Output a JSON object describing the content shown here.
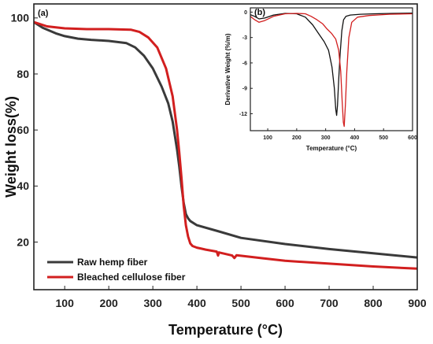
{
  "chart_data": [
    {
      "panel_label": "(a)",
      "type": "line",
      "xlabel": "Temperature (°C)",
      "ylabel": "Weight loss(%)",
      "xlim": [
        30,
        900
      ],
      "ylim": [
        3,
        105
      ],
      "x_ticks": [
        100,
        200,
        300,
        400,
        500,
        600,
        700,
        800,
        900
      ],
      "y_ticks": [
        20,
        40,
        60,
        80,
        100
      ],
      "legend_position": "bottom-left",
      "series": [
        {
          "name": "Raw hemp fiber",
          "color": "#3a3a3a",
          "x": [
            30,
            50,
            80,
            100,
            130,
            160,
            200,
            240,
            260,
            280,
            300,
            320,
            335,
            345,
            355,
            360,
            365,
            370,
            375,
            380,
            385,
            400,
            450,
            500,
            600,
            700,
            800,
            900
          ],
          "y": [
            98.5,
            96.5,
            94.5,
            93.5,
            92.6,
            92.2,
            91.8,
            91,
            89.5,
            86.5,
            82,
            75.5,
            69.5,
            63,
            53,
            47,
            40,
            34,
            30,
            28.5,
            27.5,
            26,
            23.8,
            21.5,
            19.3,
            17.5,
            16,
            14.5
          ]
        },
        {
          "name": "Bleached cellulose fiber",
          "color": "#d21f1f",
          "x": [
            30,
            60,
            100,
            150,
            200,
            250,
            270,
            290,
            310,
            330,
            345,
            355,
            360,
            365,
            370,
            375,
            380,
            385,
            390,
            400,
            420,
            445,
            448,
            450,
            480,
            485,
            490,
            550,
            600,
            700,
            800,
            900
          ],
          "y": [
            98.5,
            97,
            96.3,
            96,
            96,
            95.8,
            95,
            93,
            89.5,
            82,
            72,
            60,
            52,
            43,
            33,
            26,
            22,
            19.5,
            18.6,
            18,
            17.3,
            16.6,
            15.2,
            16.3,
            15.2,
            14.3,
            15.3,
            14.2,
            13.3,
            12.3,
            11.3,
            10.5
          ]
        }
      ]
    },
    {
      "panel_label": "(b)",
      "type": "line",
      "xlabel": "Temperature (°C)",
      "ylabel": "Derivative Weight (%/m)",
      "xlim": [
        40,
        600
      ],
      "ylim": [
        -14,
        0.5
      ],
      "x_ticks": [
        100,
        200,
        300,
        400,
        500,
        600
      ],
      "y_ticks": [
        0,
        -3,
        -6,
        -9,
        -12
      ],
      "series": [
        {
          "color": "#111111",
          "x": [
            40,
            55,
            70,
            90,
            120,
            160,
            200,
            230,
            255,
            275,
            295,
            310,
            322,
            330,
            335,
            338,
            341,
            345,
            350,
            356,
            362,
            370,
            385,
            420,
            470,
            530,
            600
          ],
          "y": [
            -0.3,
            -0.5,
            -0.8,
            -0.7,
            -0.35,
            -0.15,
            -0.2,
            -0.6,
            -1.5,
            -2.5,
            -3.5,
            -4.5,
            -6.5,
            -9,
            -11.5,
            -12.2,
            -11,
            -8,
            -5,
            -2.2,
            -0.9,
            -0.5,
            -0.35,
            -0.25,
            -0.2,
            -0.15,
            -0.12
          ]
        },
        {
          "color": "#d21f1f",
          "x": [
            40,
            55,
            70,
            90,
            120,
            160,
            200,
            230,
            250,
            270,
            290,
            305,
            320,
            335,
            345,
            352,
            357,
            361,
            364,
            368,
            373,
            380,
            390,
            410,
            450,
            520,
            600
          ],
          "y": [
            -0.5,
            -0.9,
            -1.2,
            -1,
            -0.5,
            -0.2,
            -0.15,
            -0.2,
            -0.5,
            -0.9,
            -1.4,
            -2,
            -2.5,
            -3.2,
            -4.5,
            -7,
            -10.5,
            -13,
            -13.5,
            -11,
            -7,
            -3,
            -1.2,
            -0.6,
            -0.4,
            -0.25,
            -0.2
          ]
        }
      ]
    }
  ]
}
